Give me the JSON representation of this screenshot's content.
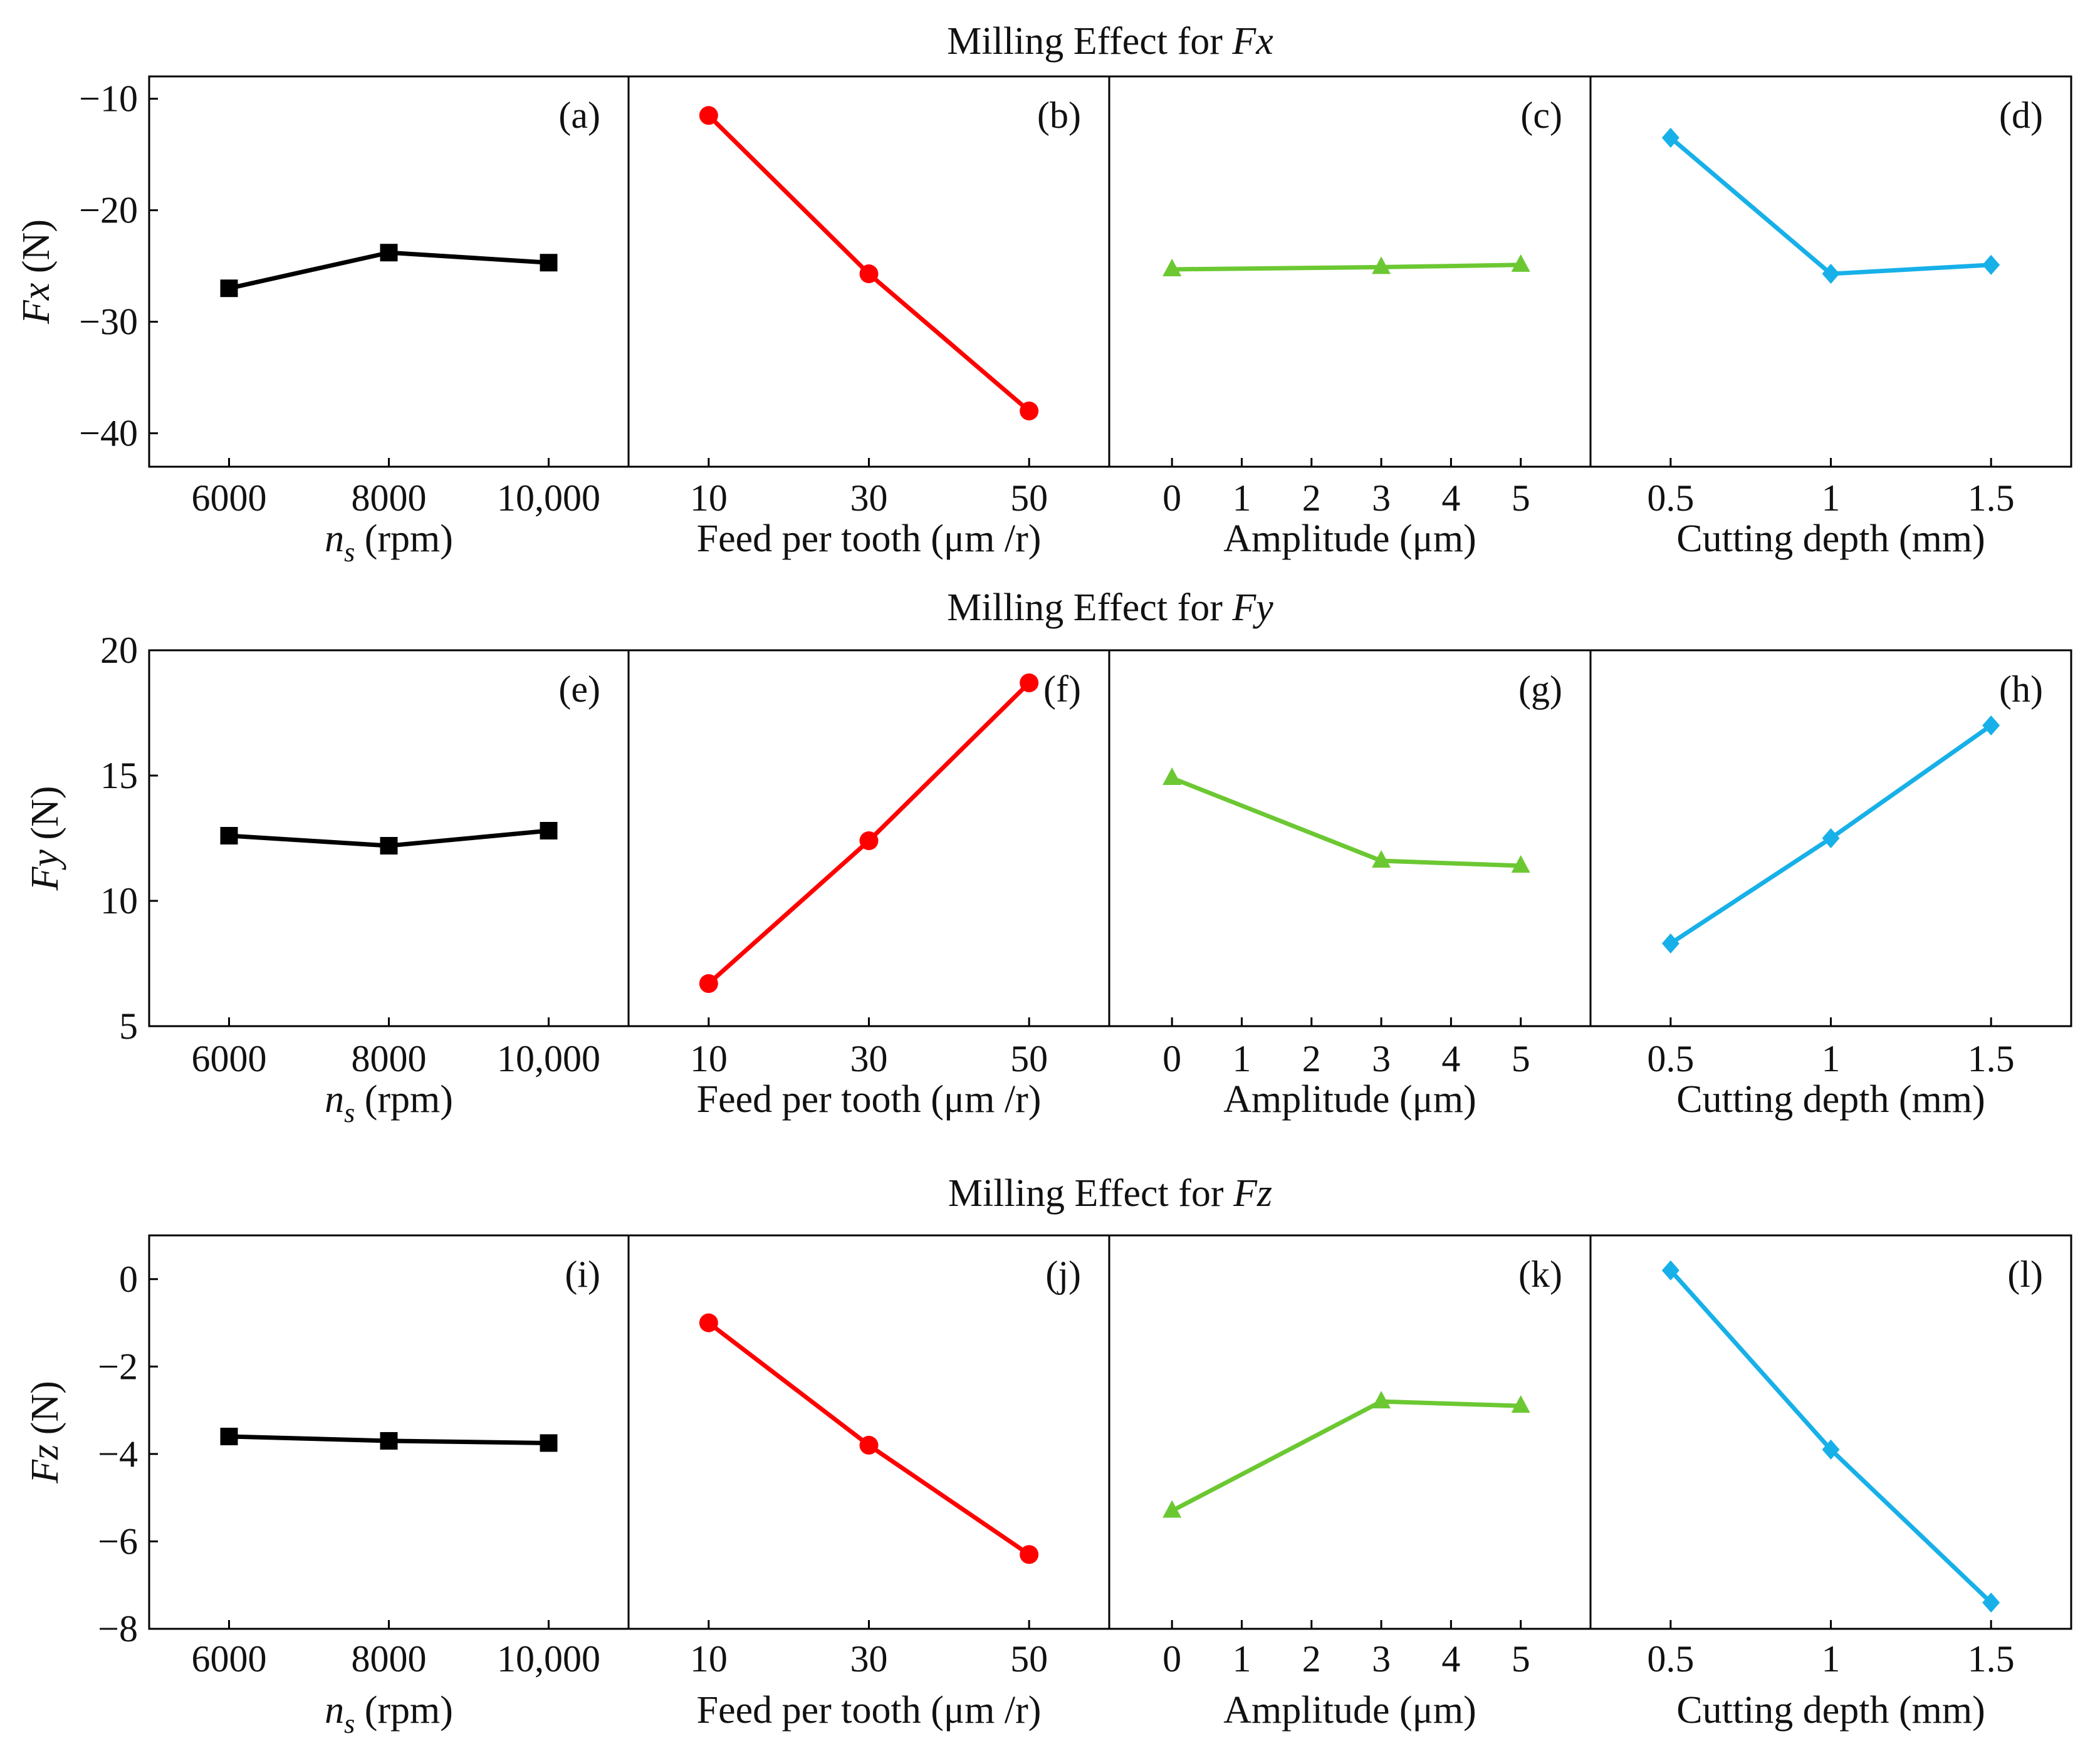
{
  "figure": {
    "rows": [
      {
        "title_prefix": "Milling Effect for ",
        "title_var": "Fx",
        "y_var": "Fx",
        "y_unit": " (N)",
        "y_ticks": [
          "−10",
          "−20",
          "−30",
          "−40"
        ]
      },
      {
        "title_prefix": "Milling Effect for ",
        "title_var": "Fy",
        "y_var": "Fy",
        "y_unit": " (N)",
        "y_ticks": [
          "20",
          "15",
          "10",
          "5"
        ]
      },
      {
        "title_prefix": "Milling Effect for ",
        "title_var": "Fz",
        "y_var": "Fz",
        "y_unit": " (N)",
        "y_ticks": [
          "0",
          "−2",
          "−4",
          "−6",
          "−8"
        ]
      }
    ],
    "columns": [
      {
        "xlabel": "n",
        "xlabel_sub": "s",
        "xlabel_rest": " (rpm)",
        "ticks": [
          "6000",
          "8000",
          "10,000"
        ]
      },
      {
        "xlabel": "Feed per tooth (μm /r)",
        "ticks": [
          "10",
          "30",
          "50"
        ]
      },
      {
        "xlabel": "Amplitude (μm)",
        "ticks": [
          "0",
          "1",
          "2",
          "3",
          "4",
          "5"
        ]
      },
      {
        "xlabel": "Cutting depth (mm)",
        "ticks": [
          "0.5",
          "1",
          "1.5"
        ]
      }
    ],
    "panel_labels": [
      "(a)",
      "(b)",
      "(c)",
      "(d)",
      "(e)",
      "(f)",
      "(g)",
      "(h)",
      "(i)",
      "(j)",
      "(k)",
      "(l)"
    ],
    "colors": {
      "spindle": "#000000",
      "feed": "#ff0000",
      "amplitude": "#6cc832",
      "depth": "#17b0e8",
      "axis": "#000000"
    },
    "markers": {
      "spindle": "square",
      "feed": "circle",
      "amplitude": "triangle",
      "depth": "diamond"
    }
  },
  "chart_data": [
    {
      "type": "line",
      "title": "Milling Effect for Fx",
      "ylabel": "Fx (N)",
      "ylim": [
        -43,
        -8
      ],
      "panels": [
        {
          "label": "(a)",
          "xlabel": "ns (rpm)",
          "x": [
            6000,
            8000,
            10000
          ],
          "xlim": [
            5000,
            11000
          ],
          "y": [
            -27.0,
            -23.8,
            -24.7
          ]
        },
        {
          "label": "(b)",
          "xlabel": "Feed per tooth (μm /r)",
          "x": [
            10,
            30,
            50
          ],
          "xlim": [
            0,
            60
          ],
          "y": [
            -11.5,
            -25.7,
            -38.0
          ]
        },
        {
          "label": "(c)",
          "xlabel": "Amplitude (μm)",
          "x": [
            0,
            3,
            5
          ],
          "xlim": [
            -0.9,
            6.0
          ],
          "y": [
            -25.3,
            -25.1,
            -24.9
          ]
        },
        {
          "label": "(d)",
          "xlabel": "Cutting depth (mm)",
          "x": [
            0.5,
            1,
            1.5
          ],
          "xlim": [
            0.25,
            1.75
          ],
          "y": [
            -13.5,
            -25.7,
            -24.9
          ]
        }
      ]
    },
    {
      "type": "line",
      "title": "Milling Effect for Fy",
      "ylabel": "Fy (N)",
      "ylim": [
        5,
        20
      ],
      "panels": [
        {
          "label": "(e)",
          "xlabel": "ns (rpm)",
          "x": [
            6000,
            8000,
            10000
          ],
          "xlim": [
            5000,
            11000
          ],
          "y": [
            12.6,
            12.2,
            12.8
          ]
        },
        {
          "label": "(f)",
          "xlabel": "Feed per tooth (μm /r)",
          "x": [
            10,
            30,
            50
          ],
          "xlim": [
            0,
            60
          ],
          "y": [
            6.7,
            12.4,
            18.7
          ]
        },
        {
          "label": "(g)",
          "xlabel": "Amplitude (μm)",
          "x": [
            0,
            3,
            5
          ],
          "xlim": [
            -0.9,
            6.0
          ],
          "y": [
            14.9,
            11.6,
            11.4
          ]
        },
        {
          "label": "(h)",
          "xlabel": "Cutting depth (mm)",
          "x": [
            0.5,
            1,
            1.5
          ],
          "xlim": [
            0.25,
            1.75
          ],
          "y": [
            8.3,
            12.5,
            17.0
          ]
        }
      ]
    },
    {
      "type": "line",
      "title": "Milling Effect for Fz",
      "ylabel": "Fz (N)",
      "ylim": [
        -8,
        1
      ],
      "panels": [
        {
          "label": "(i)",
          "xlabel": "ns (rpm)",
          "x": [
            6000,
            8000,
            10000
          ],
          "xlim": [
            5000,
            11000
          ],
          "y": [
            -3.6,
            -3.7,
            -3.75
          ]
        },
        {
          "label": "(j)",
          "xlabel": "Feed per tooth (μm /r)",
          "x": [
            10,
            30,
            50
          ],
          "xlim": [
            0,
            60
          ],
          "y": [
            -1.0,
            -3.8,
            -6.3
          ]
        },
        {
          "label": "(k)",
          "xlabel": "Amplitude (μm)",
          "x": [
            0,
            3,
            5
          ],
          "xlim": [
            -0.9,
            6.0
          ],
          "y": [
            -5.3,
            -2.8,
            -2.9
          ]
        },
        {
          "label": "(l)",
          "xlabel": "Cutting depth (mm)",
          "x": [
            0.5,
            1,
            1.5
          ],
          "xlim": [
            0.25,
            1.75
          ],
          "y": [
            0.2,
            -3.9,
            -7.4
          ]
        }
      ]
    }
  ]
}
